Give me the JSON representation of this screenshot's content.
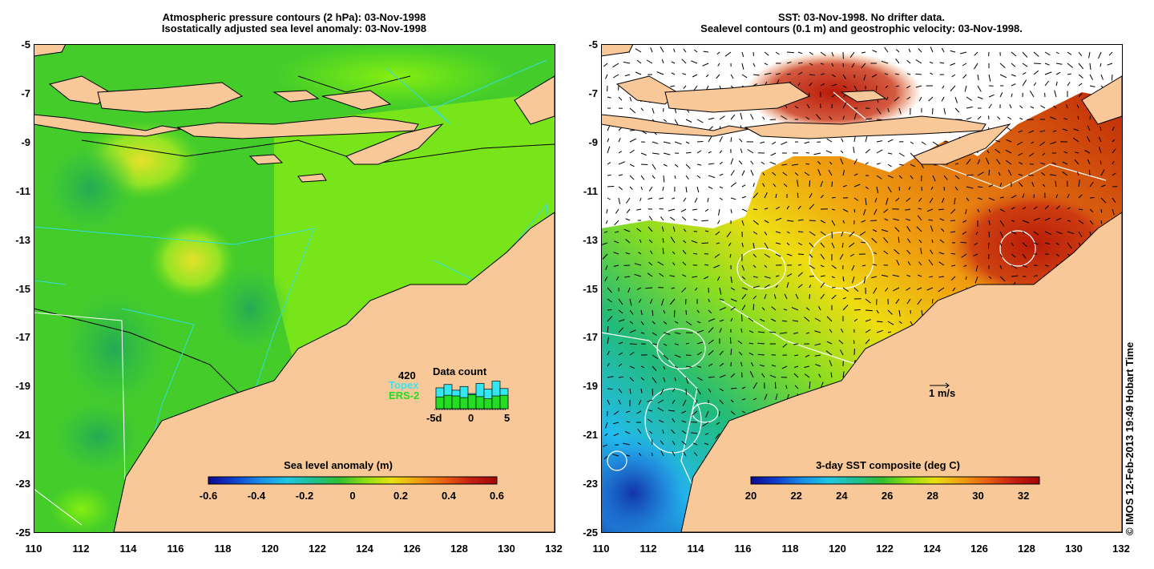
{
  "left_panel": {
    "title_line1": "Atmospheric pressure contours (2 hPa): 03-Nov-1998",
    "title_line2": "Isostatically adjusted sea level anomaly: 03-Nov-1998",
    "colorbar": {
      "title": "Sea level anomaly (m)",
      "ticks": [
        "-0.6",
        "-0.4",
        "-0.2",
        "0",
        "0.2",
        "0.4",
        "0.6"
      ],
      "range": [
        -0.6,
        0.6
      ]
    },
    "data_count": {
      "title": "Data count",
      "max_label": "420",
      "topex_label": "Topex",
      "ers_label": "ERS-2",
      "axis_labels": [
        "-5d",
        "0",
        "5"
      ],
      "topex_color": "#33e6f0",
      "ers_color": "#22dd22"
    }
  },
  "right_panel": {
    "title_line1": "SST: 03-Nov-1998. No drifter data.",
    "title_line2": "Sealevel contours (0.1 m) and geostrophic velocity: 03-Nov-1998.",
    "colorbar": {
      "title": "3-day SST composite (deg C)",
      "ticks": [
        "20",
        "22",
        "24",
        "26",
        "28",
        "30",
        "32"
      ],
      "range": [
        20,
        32.7
      ]
    },
    "velocity_scale_label": "1 m/s"
  },
  "axes": {
    "lat_ticks": [
      "-5",
      "-7",
      "-9",
      "-11",
      "-13",
      "-15",
      "-17",
      "-19",
      "-21",
      "-23",
      "-25"
    ],
    "lon_ticks": [
      "110",
      "112",
      "114",
      "116",
      "118",
      "120",
      "122",
      "124",
      "126",
      "128",
      "130",
      "132"
    ]
  },
  "credit": "© IMOS 12-Feb-2013 19:49 Hobart Time",
  "colors": {
    "land": "#f8c898",
    "ocean_green": "#55dd22",
    "coast": "#000000",
    "altimeter_track": "#33dddd"
  }
}
